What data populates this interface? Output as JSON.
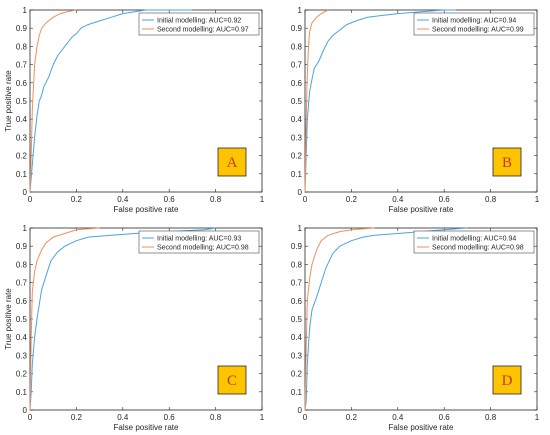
{
  "figure": {
    "panels": [
      {
        "badge": "A",
        "legend": [
          "Initial modelling: AUC=0.92",
          "Second modelling: AUC=0.97"
        ],
        "show_ylabel": true
      },
      {
        "badge": "B",
        "legend": [
          "Initial modelling: AUC=0.94",
          "Second modelling: AUC=0.99"
        ],
        "show_ylabel": false
      },
      {
        "badge": "C",
        "legend": [
          "Initial modelling: AUC=0.93",
          "Second modelling: AUC=0.98"
        ],
        "show_ylabel": true
      },
      {
        "badge": "D",
        "legend": [
          "Initial modelling: AUC=0.94",
          "Second modelling: AUC=0.98"
        ],
        "show_ylabel": false
      }
    ],
    "colors": {
      "initial": "#4aa3df",
      "second": "#ef8f5a",
      "badge_fill": "#ffc400",
      "badge_text": "#c0392b"
    }
  },
  "chart_data": [
    {
      "type": "line",
      "title": "",
      "xlabel": "False positive rate",
      "ylabel": "True positive rate",
      "xlim": [
        0,
        1
      ],
      "ylim": [
        0,
        1
      ],
      "xticks": [
        "0",
        "0.2",
        "0.4",
        "0.6",
        "0.8",
        "1"
      ],
      "yticks": [
        "0",
        "0.1",
        "0.2",
        "0.3",
        "0.4",
        "0.5",
        "0.6",
        "0.7",
        "0.8",
        "0.9",
        "1"
      ],
      "legend_position": "top-right",
      "series": [
        {
          "name": "Initial modelling: AUC=0.92",
          "points": [
            [
              0,
              0
            ],
            [
              0.01,
              0.15
            ],
            [
              0.02,
              0.3
            ],
            [
              0.03,
              0.42
            ],
            [
              0.04,
              0.5
            ],
            [
              0.05,
              0.53
            ],
            [
              0.06,
              0.58
            ],
            [
              0.08,
              0.63
            ],
            [
              0.1,
              0.7
            ],
            [
              0.12,
              0.75
            ],
            [
              0.15,
              0.8
            ],
            [
              0.18,
              0.85
            ],
            [
              0.2,
              0.87
            ],
            [
              0.22,
              0.9
            ],
            [
              0.25,
              0.92
            ],
            [
              0.3,
              0.94
            ],
            [
              0.35,
              0.96
            ],
            [
              0.4,
              0.98
            ],
            [
              0.45,
              0.99
            ],
            [
              0.5,
              1.0
            ],
            [
              0.7,
              1.0
            ]
          ]
        },
        {
          "name": "Second modelling: AUC=0.97",
          "points": [
            [
              0,
              0
            ],
            [
              0.005,
              0.2
            ],
            [
              0.01,
              0.45
            ],
            [
              0.02,
              0.7
            ],
            [
              0.03,
              0.8
            ],
            [
              0.04,
              0.86
            ],
            [
              0.05,
              0.9
            ],
            [
              0.07,
              0.93
            ],
            [
              0.1,
              0.96
            ],
            [
              0.13,
              0.98
            ],
            [
              0.16,
              0.99
            ],
            [
              0.2,
              1.0
            ]
          ]
        }
      ]
    },
    {
      "type": "line",
      "title": "",
      "xlabel": "False positive rate",
      "ylabel": "",
      "xlim": [
        0,
        1
      ],
      "ylim": [
        0,
        1
      ],
      "xticks": [
        "0",
        "0.2",
        "0.4",
        "0.6",
        "0.8",
        "1"
      ],
      "yticks": [
        "0",
        "0.1",
        "0.2",
        "0.3",
        "0.4",
        "0.5",
        "0.6",
        "0.7",
        "0.8",
        "0.9",
        "1"
      ],
      "legend_position": "top-right",
      "series": [
        {
          "name": "Initial modelling: AUC=0.94",
          "points": [
            [
              0,
              0
            ],
            [
              0.005,
              0.2
            ],
            [
              0.01,
              0.4
            ],
            [
              0.02,
              0.55
            ],
            [
              0.03,
              0.62
            ],
            [
              0.04,
              0.68
            ],
            [
              0.06,
              0.72
            ],
            [
              0.08,
              0.78
            ],
            [
              0.1,
              0.83
            ],
            [
              0.12,
              0.86
            ],
            [
              0.15,
              0.89
            ],
            [
              0.18,
              0.92
            ],
            [
              0.22,
              0.94
            ],
            [
              0.27,
              0.96
            ],
            [
              0.33,
              0.97
            ],
            [
              0.4,
              0.98
            ],
            [
              0.5,
              0.99
            ],
            [
              0.6,
              1.0
            ],
            [
              0.65,
              1.0
            ]
          ]
        },
        {
          "name": "Second modelling: AUC=0.99",
          "points": [
            [
              0,
              0
            ],
            [
              0.005,
              0.4
            ],
            [
              0.01,
              0.65
            ],
            [
              0.015,
              0.8
            ],
            [
              0.02,
              0.88
            ],
            [
              0.03,
              0.93
            ],
            [
              0.05,
              0.96
            ],
            [
              0.07,
              0.98
            ],
            [
              0.1,
              1.0
            ]
          ]
        }
      ]
    },
    {
      "type": "line",
      "title": "",
      "xlabel": "False positive rate",
      "ylabel": "True positive rate",
      "xlim": [
        0,
        1
      ],
      "ylim": [
        0,
        1
      ],
      "xticks": [
        "0",
        "0.2",
        "0.4",
        "0.6",
        "0.8",
        "1"
      ],
      "yticks": [
        "0",
        "0.1",
        "0.2",
        "0.3",
        "0.4",
        "0.5",
        "0.6",
        "0.7",
        "0.8",
        "0.9",
        "1"
      ],
      "legend_position": "top-right",
      "series": [
        {
          "name": "Initial modelling: AUC=0.93",
          "points": [
            [
              0,
              0
            ],
            [
              0.005,
              0.1
            ],
            [
              0.01,
              0.25
            ],
            [
              0.02,
              0.4
            ],
            [
              0.03,
              0.5
            ],
            [
              0.04,
              0.58
            ],
            [
              0.05,
              0.66
            ],
            [
              0.07,
              0.74
            ],
            [
              0.09,
              0.82
            ],
            [
              0.12,
              0.87
            ],
            [
              0.15,
              0.9
            ],
            [
              0.2,
              0.93
            ],
            [
              0.25,
              0.95
            ],
            [
              0.35,
              0.96
            ],
            [
              0.45,
              0.97
            ],
            [
              0.6,
              0.98
            ],
            [
              0.75,
              0.99
            ],
            [
              0.8,
              1.0
            ]
          ]
        },
        {
          "name": "Second modelling: AUC=0.98",
          "points": [
            [
              0,
              0
            ],
            [
              0.005,
              0.4
            ],
            [
              0.01,
              0.65
            ],
            [
              0.02,
              0.76
            ],
            [
              0.03,
              0.82
            ],
            [
              0.05,
              0.88
            ],
            [
              0.07,
              0.92
            ],
            [
              0.1,
              0.95
            ],
            [
              0.15,
              0.97
            ],
            [
              0.2,
              0.99
            ],
            [
              0.3,
              1.0
            ]
          ]
        }
      ]
    },
    {
      "type": "line",
      "title": "",
      "xlabel": "False positive rate",
      "ylabel": "",
      "xlim": [
        0,
        1
      ],
      "ylim": [
        0,
        1
      ],
      "xticks": [
        "0",
        "0.2",
        "0.4",
        "0.6",
        "0.8",
        "1"
      ],
      "yticks": [
        "0",
        "0.1",
        "0.2",
        "0.3",
        "0.4",
        "0.5",
        "0.6",
        "0.7",
        "0.8",
        "0.9",
        "1"
      ],
      "legend_position": "top-right",
      "series": [
        {
          "name": "Initial modelling: AUC=0.94",
          "points": [
            [
              0,
              0
            ],
            [
              0.005,
              0.05
            ],
            [
              0.01,
              0.25
            ],
            [
              0.02,
              0.45
            ],
            [
              0.03,
              0.55
            ],
            [
              0.05,
              0.62
            ],
            [
              0.07,
              0.7
            ],
            [
              0.09,
              0.78
            ],
            [
              0.12,
              0.86
            ],
            [
              0.15,
              0.9
            ],
            [
              0.2,
              0.93
            ],
            [
              0.25,
              0.95
            ],
            [
              0.3,
              0.96
            ],
            [
              0.4,
              0.97
            ],
            [
              0.5,
              0.98
            ],
            [
              0.6,
              0.99
            ],
            [
              0.7,
              1.0
            ]
          ]
        },
        {
          "name": "Second modelling: AUC=0.98",
          "points": [
            [
              0,
              0
            ],
            [
              0.005,
              0.35
            ],
            [
              0.01,
              0.6
            ],
            [
              0.02,
              0.72
            ],
            [
              0.03,
              0.8
            ],
            [
              0.05,
              0.88
            ],
            [
              0.07,
              0.93
            ],
            [
              0.1,
              0.96
            ],
            [
              0.15,
              0.98
            ],
            [
              0.2,
              0.99
            ],
            [
              0.3,
              1.0
            ]
          ]
        }
      ]
    }
  ]
}
